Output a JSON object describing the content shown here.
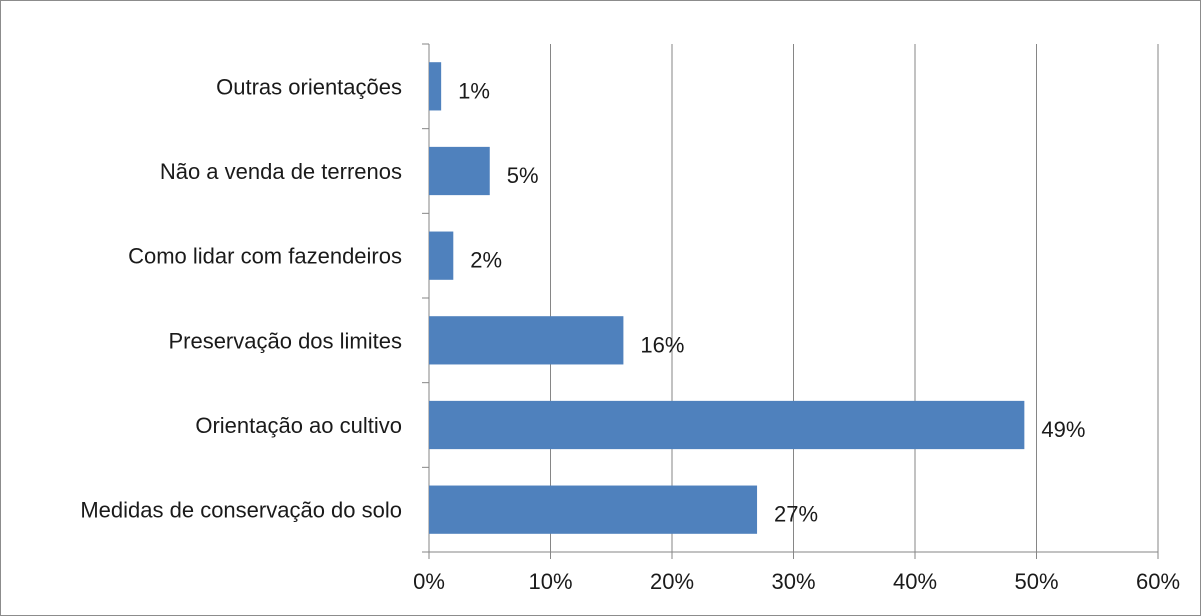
{
  "chart_data": {
    "type": "bar",
    "orientation": "horizontal",
    "categories": [
      "Medidas de conservação do solo",
      "Orientação ao cultivo",
      "Preservação dos limites",
      "Como lidar com fazendeiros",
      "Não a venda de terrenos",
      "Outras orientações"
    ],
    "values": [
      27,
      49,
      16,
      2,
      5,
      1
    ],
    "data_labels": [
      "27%",
      "49%",
      "16%",
      "2%",
      "5%",
      "1%"
    ],
    "x_ticks": [
      "0%",
      "10%",
      "20%",
      "30%",
      "40%",
      "50%",
      "60%"
    ],
    "xlim": [
      0,
      60
    ],
    "title": "",
    "xlabel": "",
    "ylabel": "",
    "grid": "vertical",
    "legend": "none",
    "bar_color": "#4f81bd",
    "gridline_color": "#868686"
  }
}
